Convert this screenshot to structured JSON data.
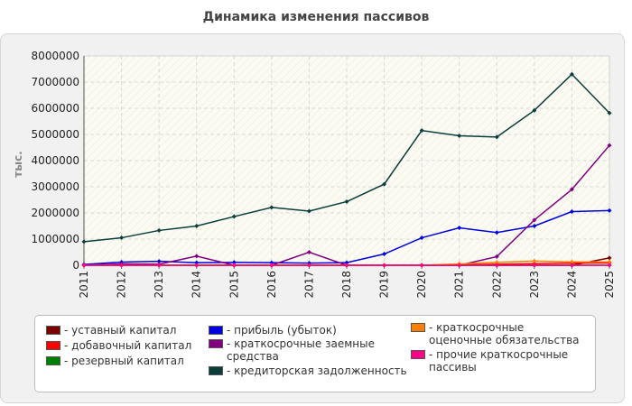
{
  "chart_data": {
    "type": "line",
    "title": "Динамика изменения пассивов",
    "ylabel": "тыс.",
    "xlabel": "",
    "x": [
      "2011",
      "2012",
      "2013",
      "2014",
      "2015",
      "2016",
      "2017",
      "2018",
      "2019",
      "2020",
      "2021",
      "2022",
      "2023",
      "2024",
      "2025"
    ],
    "ylim": [
      0,
      8000000
    ],
    "yticks": [
      "0",
      "1000000",
      "2000000",
      "3000000",
      "4000000",
      "5000000",
      "6000000",
      "7000000",
      "8000000"
    ],
    "grid": true,
    "legend_position": "bottom",
    "series": [
      {
        "name": "- уставный капитал",
        "color": "#7a0000",
        "values": [
          0,
          0,
          0,
          0,
          0,
          0,
          0,
          0,
          0,
          0,
          0,
          0,
          0,
          0,
          280000
        ]
      },
      {
        "name": "- добавочный капитал",
        "color": "#ff0000",
        "values": [
          0,
          0,
          0,
          0,
          0,
          0,
          0,
          0,
          0,
          0,
          20000,
          40000,
          60000,
          80000,
          90000
        ]
      },
      {
        "name": "- резервный капитал",
        "color": "#008000",
        "values": [
          0,
          0,
          0,
          0,
          0,
          0,
          0,
          0,
          0,
          0,
          0,
          0,
          0,
          0,
          0
        ]
      },
      {
        "name": "- прибыль (убыток)",
        "color": "#0000dd",
        "values": [
          30000,
          120000,
          150000,
          100000,
          110000,
          100000,
          80000,
          100000,
          430000,
          1050000,
          1430000,
          1250000,
          1500000,
          2050000,
          2090000
        ]
      },
      {
        "name": "- краткосрочные заемные средства",
        "color": "#800080",
        "values": [
          0,
          50000,
          40000,
          350000,
          0,
          0,
          500000,
          0,
          0,
          0,
          0,
          330000,
          1730000,
          2900000,
          4580000
        ]
      },
      {
        "name": "- кредиторская задолженность",
        "color": "#0b3d3a",
        "values": [
          900000,
          1050000,
          1330000,
          1500000,
          1860000,
          2210000,
          2070000,
          2430000,
          3100000,
          5150000,
          4950000,
          4900000,
          5920000,
          7300000,
          5820000
        ]
      },
      {
        "name": "- краткосрочные оценочные обязательства",
        "color": "#ff8000",
        "values": [
          0,
          0,
          0,
          0,
          0,
          0,
          0,
          0,
          0,
          0,
          50000,
          110000,
          160000,
          130000,
          130000
        ]
      },
      {
        "name": "- прочие краткосрочные пассивы",
        "color": "#ff0088",
        "values": [
          0,
          0,
          0,
          0,
          0,
          0,
          0,
          0,
          0,
          0,
          0,
          0,
          0,
          0,
          0
        ]
      }
    ]
  },
  "legend": {
    "items": [
      {
        "label": "- уставный капитал",
        "color": "#7a0000"
      },
      {
        "label": "- добавочный капитал",
        "color": "#ff0000"
      },
      {
        "label": "- резервный капитал",
        "color": "#008000"
      },
      {
        "label": "- прибыль (убыток)",
        "color": "#0000dd"
      },
      {
        "label": "- краткосрочные заемные средства",
        "color": "#800080"
      },
      {
        "label": "- кредиторская задолженность",
        "color": "#0b3d3a"
      },
      {
        "label": "- краткосрочные оценочные обязательства",
        "color": "#ff8000"
      },
      {
        "label": "- прочие краткосрочные пассивы",
        "color": "#ff0088"
      }
    ]
  }
}
